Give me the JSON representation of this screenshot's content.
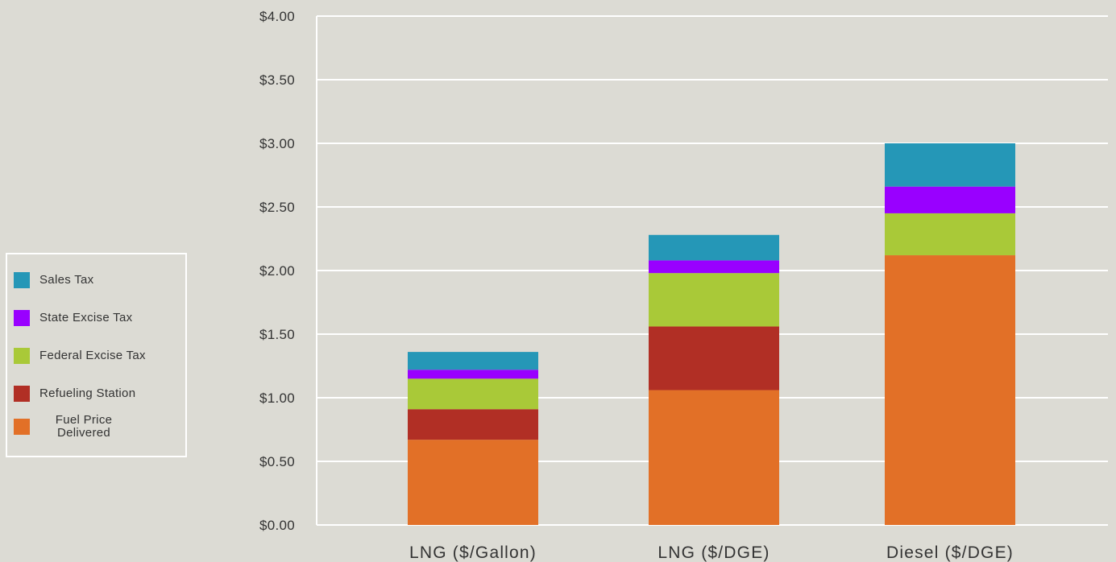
{
  "chart_data": {
    "type": "bar",
    "stacked": true,
    "categories": [
      "LNG ($/Gallon)",
      "LNG ($/DGE)",
      "Diesel ($/DGE)"
    ],
    "series": [
      {
        "name": "Fuel Price Delivered",
        "color": "#e27027",
        "values": [
          0.67,
          1.06,
          2.12
        ]
      },
      {
        "name": "Refueling Station",
        "color": "#b12f25",
        "values": [
          0.24,
          0.5,
          0.0
        ]
      },
      {
        "name": "Federal Excise Tax",
        "color": "#a9c938",
        "values": [
          0.24,
          0.42,
          0.33
        ]
      },
      {
        "name": "State Excise Tax",
        "color": "#9900ff",
        "values": [
          0.07,
          0.1,
          0.21
        ]
      },
      {
        "name": "Sales Tax",
        "color": "#2597b7",
        "values": [
          0.14,
          0.2,
          0.34
        ]
      }
    ],
    "y_ticks": [
      "$0.00",
      "$0.50",
      "$1.00",
      "$1.50",
      "$2.00",
      "$2.50",
      "$3.00",
      "$3.50",
      "$4.00"
    ],
    "ylim": [
      0,
      4
    ],
    "grid": true,
    "legend_position": "left",
    "title": "",
    "xlabel": "",
    "ylabel": ""
  },
  "legend": {
    "items": [
      {
        "label": "Sales Tax",
        "color": "#2597b7"
      },
      {
        "label": "State Excise Tax",
        "color": "#9900ff"
      },
      {
        "label": "Federal Excise Tax",
        "color": "#a9c938"
      },
      {
        "label": "Refueling Station",
        "color": "#b12f25"
      },
      {
        "label": "Fuel Price Delivered",
        "color": "#e27027"
      }
    ]
  }
}
